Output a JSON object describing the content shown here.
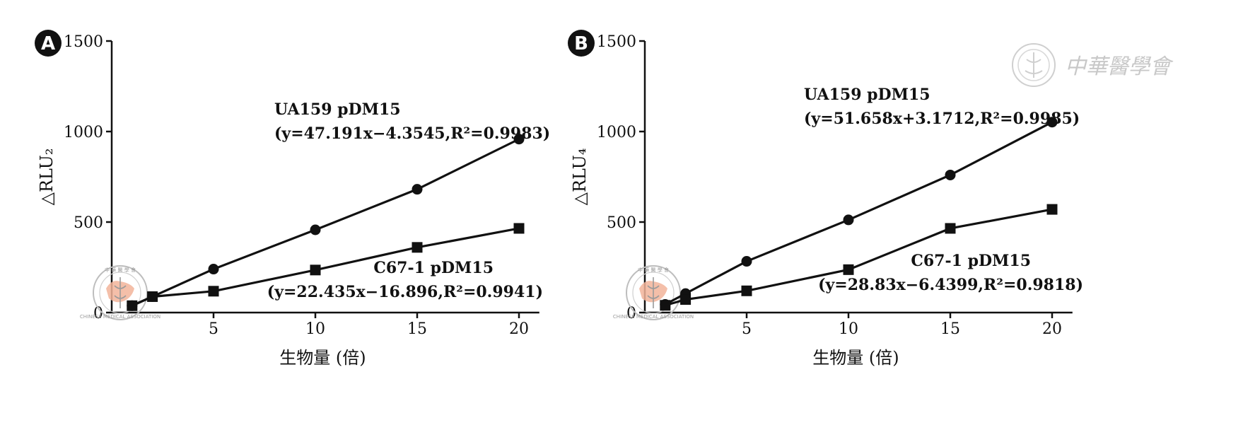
{
  "colors": {
    "ink": "#111111",
    "seal_fill": "#f2b49a",
    "watermark": "#c8c8c8"
  },
  "watermark": {
    "text": "中華醫學會"
  },
  "seal": {
    "top_text": "中 華 醫 學 會",
    "bottom_text": "CHINESE MEDICAL ASSOCIATION"
  },
  "chart_data": [
    {
      "type": "line",
      "panel_label": "A",
      "xlabel": "生物量 (倍)",
      "ylabel": "△RLU₂",
      "xlim": [
        0,
        21
      ],
      "ylim": [
        0,
        1500
      ],
      "xticks": [
        5,
        10,
        15,
        20
      ],
      "yticks": [
        0,
        500,
        1000,
        1500
      ],
      "grid": false,
      "series": [
        {
          "name": "UA159 pDM15",
          "equation": "(y=47.191x−4.3545,R²=0.9983)",
          "marker": "circle",
          "x": [
            1,
            2,
            5,
            10,
            15,
            20
          ],
          "y": [
            38,
            88,
            240,
            457,
            681,
            958
          ]
        },
        {
          "name": "C67-1 pDM15",
          "equation": "(y=22.435x−16.896,R²=0.9941)",
          "marker": "square",
          "x": [
            1,
            2,
            5,
            10,
            15,
            20
          ],
          "y": [
            38,
            88,
            118,
            235,
            360,
            465
          ]
        }
      ]
    },
    {
      "type": "line",
      "panel_label": "B",
      "xlabel": "生物量 (倍)",
      "ylabel": "△RLU₄",
      "xlim": [
        0,
        21
      ],
      "ylim": [
        0,
        1500
      ],
      "xticks": [
        5,
        10,
        15,
        20
      ],
      "yticks": [
        0,
        500,
        1000,
        1500
      ],
      "grid": false,
      "series": [
        {
          "name": "UA159 pDM15",
          "equation": "(y=51.658x+3.1712,R²=0.9985)",
          "marker": "circle",
          "x": [
            1,
            2,
            5,
            10,
            15,
            20
          ],
          "y": [
            45,
            105,
            283,
            512,
            760,
            1052
          ]
        },
        {
          "name": "C67-1 pDM15",
          "equation": "(y=28.83x−6.4399,R²=0.9818)",
          "marker": "square",
          "x": [
            1,
            2,
            5,
            10,
            15,
            20
          ],
          "y": [
            40,
            72,
            120,
            237,
            465,
            570
          ]
        }
      ]
    }
  ]
}
